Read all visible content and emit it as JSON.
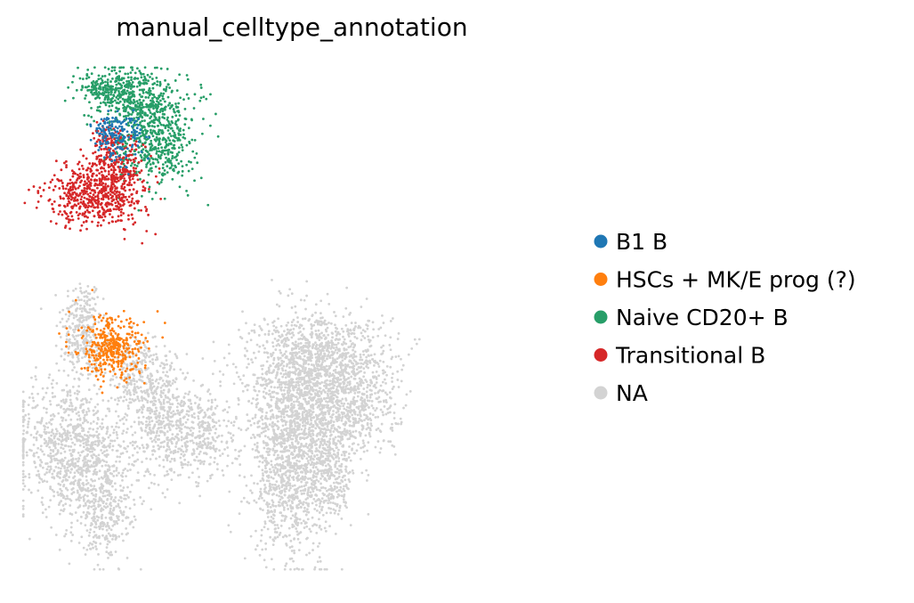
{
  "chart_data": {
    "type": "scatter",
    "title": "manual_celltype_annotation",
    "xlabel": "",
    "ylabel": "",
    "axes_visible": false,
    "grid": false,
    "legend_position": "right",
    "categories": [
      {
        "name": "B1 B",
        "color": "#1f77b4"
      },
      {
        "name": "HSCs + MK/E prog (?)",
        "color": "#ff7f0e"
      },
      {
        "name": "Naive CD20+ B",
        "color": "#279e68"
      },
      {
        "name": "Transitional B",
        "color": "#d62728"
      },
      {
        "name": "NA",
        "color": "#d3d3d3"
      }
    ],
    "point_clusters": [
      {
        "category": "NA",
        "cx": 0.115,
        "cy": 0.5,
        "sx": 0.018,
        "sy": 0.04,
        "n": 160
      },
      {
        "category": "NA",
        "cx": 0.125,
        "cy": 0.445,
        "sx": 0.022,
        "sy": 0.04,
        "n": 180
      },
      {
        "category": "NA",
        "cx": 0.21,
        "cy": 0.395,
        "sx": 0.018,
        "sy": 0.035,
        "n": 160
      },
      {
        "category": "NA",
        "cx": 0.245,
        "cy": 0.375,
        "sx": 0.03,
        "sy": 0.035,
        "n": 180
      },
      {
        "category": "NA",
        "cx": 0.09,
        "cy": 0.26,
        "sx": 0.055,
        "sy": 0.06,
        "n": 700
      },
      {
        "category": "NA",
        "cx": 0.14,
        "cy": 0.18,
        "sx": 0.04,
        "sy": 0.06,
        "n": 450
      },
      {
        "category": "NA",
        "cx": 0.16,
        "cy": 0.09,
        "sx": 0.018,
        "sy": 0.04,
        "n": 120
      },
      {
        "category": "NA",
        "cx": 0.29,
        "cy": 0.27,
        "sx": 0.035,
        "sy": 0.045,
        "n": 300
      },
      {
        "category": "NA",
        "cx": 0.34,
        "cy": 0.28,
        "sx": 0.02,
        "sy": 0.04,
        "n": 150
      },
      {
        "category": "NA",
        "cx": 0.255,
        "cy": 0.31,
        "sx": 0.025,
        "sy": 0.04,
        "n": 160
      },
      {
        "category": "NA",
        "cx": 0.505,
        "cy": 0.305,
        "sx": 0.05,
        "sy": 0.09,
        "n": 1500
      },
      {
        "category": "NA",
        "cx": 0.49,
        "cy": 0.17,
        "sx": 0.03,
        "sy": 0.07,
        "n": 450
      },
      {
        "category": "NA",
        "cx": 0.6,
        "cy": 0.34,
        "sx": 0.045,
        "sy": 0.06,
        "n": 650
      },
      {
        "category": "NA",
        "cx": 0.55,
        "cy": 0.43,
        "sx": 0.06,
        "sy": 0.04,
        "n": 600
      },
      {
        "category": "NA",
        "cx": 0.565,
        "cy": 0.19,
        "sx": 0.02,
        "sy": 0.05,
        "n": 250
      },
      {
        "category": "Naive CD20+ B",
        "cx": 0.205,
        "cy": 0.935,
        "sx": 0.04,
        "sy": 0.03,
        "n": 420
      },
      {
        "category": "Naive CD20+ B",
        "cx": 0.25,
        "cy": 0.85,
        "sx": 0.035,
        "sy": 0.045,
        "n": 520
      },
      {
        "category": "Naive CD20+ B",
        "cx": 0.15,
        "cy": 0.95,
        "sx": 0.018,
        "sy": 0.012,
        "n": 80
      },
      {
        "category": "Transitional B",
        "cx": 0.14,
        "cy": 0.74,
        "sx": 0.045,
        "sy": 0.03,
        "n": 500
      },
      {
        "category": "Transitional B",
        "cx": 0.18,
        "cy": 0.79,
        "sx": 0.025,
        "sy": 0.035,
        "n": 260
      },
      {
        "category": "Transitional B",
        "cx": 0.16,
        "cy": 0.85,
        "sx": 0.012,
        "sy": 0.02,
        "n": 60
      },
      {
        "category": "B1 B",
        "cx": 0.185,
        "cy": 0.855,
        "sx": 0.02,
        "sy": 0.025,
        "n": 130
      },
      {
        "category": "B1 B",
        "cx": 0.155,
        "cy": 0.87,
        "sx": 0.012,
        "sy": 0.015,
        "n": 40
      },
      {
        "category": "HSCs + MK/E prog (?)",
        "cx": 0.17,
        "cy": 0.44,
        "sx": 0.03,
        "sy": 0.03,
        "n": 380
      }
    ],
    "xlim": [
      0,
      1
    ],
    "ylim": [
      0,
      1
    ]
  }
}
